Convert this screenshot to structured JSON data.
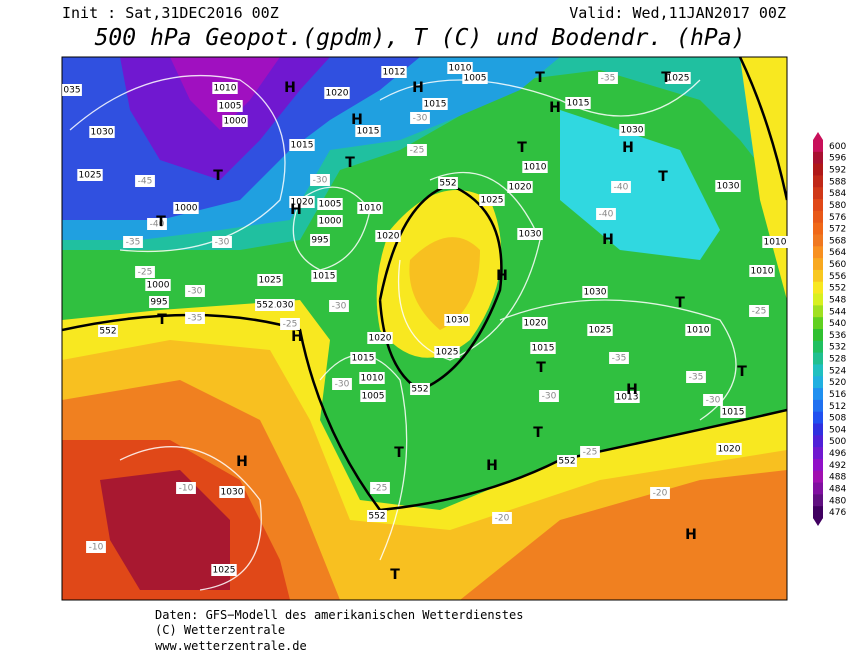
{
  "header": {
    "init": "Init : Sat,31DEC2016 00Z",
    "valid": "Valid: Wed,11JAN2017 00Z",
    "title": "500 hPa Geopot.(gpdm), T (C) und Bodendr. (hPa)"
  },
  "colorbar": {
    "values": [
      600,
      596,
      592,
      588,
      584,
      580,
      576,
      572,
      568,
      564,
      560,
      556,
      552,
      548,
      544,
      540,
      536,
      532,
      528,
      524,
      520,
      516,
      512,
      508,
      504,
      500,
      496,
      492,
      488,
      484,
      480,
      476
    ],
    "colors": [
      "#c8105a",
      "#a81030",
      "#b01818",
      "#c02818",
      "#d03818",
      "#e04818",
      "#e85818",
      "#f06818",
      "#f07820",
      "#f89020",
      "#f8a820",
      "#f8c820",
      "#f8e820",
      "#d8f020",
      "#a0e020",
      "#60d020",
      "#30c030",
      "#20c060",
      "#20c090",
      "#20c0c0",
      "#20b0e0",
      "#2090f0",
      "#2070f0",
      "#2050f0",
      "#3030e0",
      "#5020d8",
      "#7018d0",
      "#9010c8",
      "#a010b0",
      "#8010a0",
      "#601080",
      "#400060"
    ]
  },
  "map": {
    "isobars": [
      "035",
      "1030",
      "1025",
      "1010",
      "1005",
      "1000",
      "1015",
      "1020",
      "1015",
      "1012",
      "1010",
      "1005",
      "1015",
      "1025",
      "1015",
      "1030",
      "1010",
      "1020",
      "1025",
      "1030",
      "1030",
      "1010",
      "1010",
      "1000",
      "1020",
      "1005",
      "1010",
      "1000",
      "995",
      "1020",
      "1025",
      "1015",
      "1000",
      "995",
      "1030",
      "1030",
      "1030",
      "1020",
      "1025",
      "1010",
      "1015",
      "1025",
      "1020",
      "1015",
      "1010",
      "1005",
      "1013",
      "1015",
      "1020",
      "1030",
      "1025"
    ],
    "temps": [
      "-45",
      "-40",
      "-35",
      "-30",
      "-25",
      "-30",
      "-35",
      "-30",
      "-25",
      "-30",
      "-25",
      "-30",
      "-35",
      "-40",
      "-40",
      "-25",
      "-35",
      "-35",
      "-30",
      "-30",
      "-30",
      "-25",
      "-20",
      "-20",
      "-25",
      "-10",
      "-10"
    ],
    "line552": [
      "552",
      "552",
      "552",
      "552",
      "552",
      "552"
    ],
    "highs": [
      "H",
      "H",
      "H",
      "H",
      "H",
      "H",
      "H",
      "H",
      "H",
      "H",
      "H",
      "H",
      "H"
    ],
    "lows": [
      "T",
      "T",
      "T",
      "T",
      "T",
      "T",
      "T",
      "T",
      "T",
      "T",
      "T",
      "T",
      "T",
      "T"
    ]
  },
  "footer": {
    "lines": [
      "Daten: GFS−Modell des amerikanischen Wetterdienstes",
      "(C) Wetterzentrale",
      "www.wetterzentrale.de"
    ]
  }
}
